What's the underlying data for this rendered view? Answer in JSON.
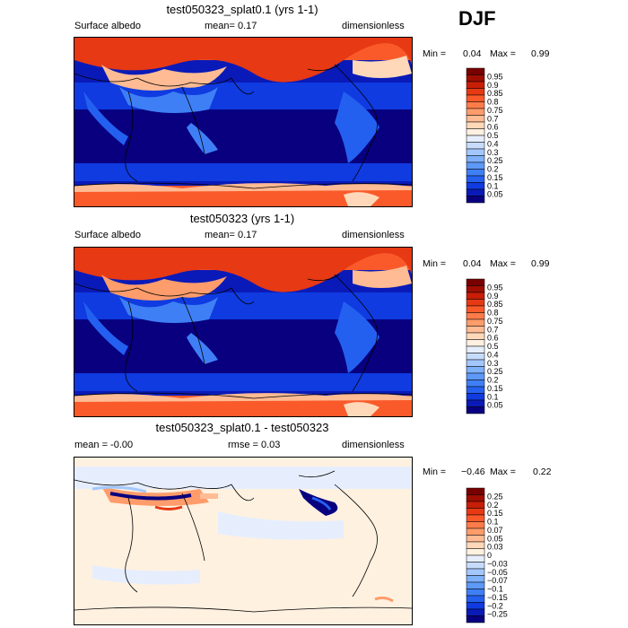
{
  "season": "DJF",
  "colors": {
    "std": [
      "#08007f",
      "#0a1ab8",
      "#0f3be0",
      "#2460f0",
      "#3f7ff5",
      "#5d99f8",
      "#7fb0fa",
      "#a3c7fc",
      "#c7dcfd",
      "#e6eefe",
      "#fff1e0",
      "#ffd8b9",
      "#ffbb93",
      "#ff9c6b",
      "#ff7c4a",
      "#fa5a2a",
      "#e63914",
      "#c81e07",
      "#a00e02",
      "#780000"
    ],
    "diff": [
      "#08007f",
      "#0a1ab8",
      "#0f3be0",
      "#2460f0",
      "#3f7ff5",
      "#5d99f8",
      "#7fb0fa",
      "#a3c7fc",
      "#c7dcfd",
      "#e6eefe",
      "#fff1e0",
      "#ffd8b9",
      "#ffbb93",
      "#ff9c6b",
      "#ff7c4a",
      "#fa5a2a",
      "#e63914",
      "#c81e07",
      "#a00e02",
      "#780000"
    ]
  },
  "panels": [
    {
      "title": "test050323_splat0.1 (yrs 1-1)",
      "left_label": "Surface albedo",
      "center_label": "mean=   0.17",
      "right_label": "dimensionless",
      "min_label": "Min =",
      "min_value": "0.04",
      "max_label": "Max =",
      "max_value": "0.99",
      "levels": [
        "0.95",
        "0.9",
        "0.85",
        "0.8",
        "0.75",
        "0.7",
        "0.6",
        "0.5",
        "0.4",
        "0.3",
        "0.25",
        "0.2",
        "0.15",
        "0.1",
        "0.05"
      ]
    },
    {
      "title": "test050323 (yrs 1-1)",
      "left_label": "Surface albedo",
      "center_label": "mean=   0.17",
      "right_label": "dimensionless",
      "min_label": "Min =",
      "min_value": "0.04",
      "max_label": "Max =",
      "max_value": "0.99",
      "levels": [
        "0.95",
        "0.9",
        "0.85",
        "0.8",
        "0.75",
        "0.7",
        "0.6",
        "0.5",
        "0.4",
        "0.3",
        "0.25",
        "0.2",
        "0.15",
        "0.1",
        "0.05"
      ]
    },
    {
      "title": "test050323_splat0.1 - test050323",
      "left_label": "mean =  -0.00",
      "center_label": "rmse =   0.03",
      "right_label": "dimensionless",
      "min_label": "Min =",
      "min_value": "−0.46",
      "max_label": "Max =",
      "max_value": "0.22",
      "levels": [
        "0.25",
        "0.2",
        "0.15",
        "0.1",
        "0.07",
        "0.05",
        "0.03",
        "0",
        "−0.03",
        "−0.05",
        "−0.07",
        "−0.1",
        "−0.15",
        "−0.2",
        "−0.25"
      ]
    }
  ],
  "chart_data": [
    {
      "type": "heatmap",
      "title": "test050323_splat0.1 (yrs 1-1)",
      "variable": "Surface albedo",
      "units": "dimensionless",
      "mean": 0.17,
      "min": 0.04,
      "max": 0.99,
      "contour_levels": [
        0.05,
        0.1,
        0.15,
        0.2,
        0.25,
        0.3,
        0.4,
        0.5,
        0.6,
        0.7,
        0.75,
        0.8,
        0.85,
        0.9,
        0.95
      ]
    },
    {
      "type": "heatmap",
      "title": "test050323 (yrs 1-1)",
      "variable": "Surface albedo",
      "units": "dimensionless",
      "mean": 0.17,
      "min": 0.04,
      "max": 0.99,
      "contour_levels": [
        0.05,
        0.1,
        0.15,
        0.2,
        0.25,
        0.3,
        0.4,
        0.5,
        0.6,
        0.7,
        0.75,
        0.8,
        0.85,
        0.9,
        0.95
      ]
    },
    {
      "type": "heatmap",
      "title": "test050323_splat0.1 - test050323",
      "units": "dimensionless",
      "mean": -0.0,
      "rmse": 0.03,
      "min": -0.46,
      "max": 0.22,
      "contour_levels": [
        -0.25,
        -0.2,
        -0.15,
        -0.1,
        -0.07,
        -0.05,
        -0.03,
        0,
        0.03,
        0.05,
        0.07,
        0.1,
        0.15,
        0.2,
        0.25
      ]
    }
  ]
}
